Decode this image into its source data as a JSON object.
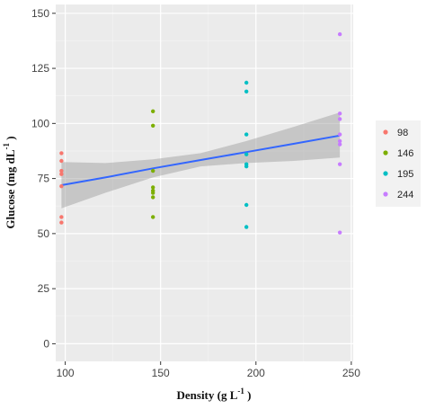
{
  "chart_data": {
    "type": "scatter",
    "title": "",
    "xlabel": {
      "main": "Density (g L",
      "sup": "-1",
      "tail": " )"
    },
    "ylabel": {
      "main": "Glucose (mg dL",
      "sup": "-1",
      "tail": " )"
    },
    "xlim": [
      95,
      251
    ],
    "ylim": [
      -8,
      154
    ],
    "x_ticks": [
      100,
      150,
      200,
      250
    ],
    "y_ticks": [
      0,
      25,
      50,
      75,
      100,
      125,
      150
    ],
    "grid": true,
    "legend_position": "right",
    "series": [
      {
        "name": "98",
        "color": "#F8766D",
        "x": 98,
        "values": [
          86.5,
          83,
          78.5,
          77,
          71.5,
          57.5,
          55
        ]
      },
      {
        "name": "146",
        "color": "#7CAE00",
        "x": 146,
        "values": [
          105.5,
          99,
          78.5,
          71,
          69.5,
          68.5,
          66.5,
          57.5
        ]
      },
      {
        "name": "195",
        "color": "#00BFC4",
        "x": 195,
        "values": [
          118.5,
          114.5,
          95,
          86,
          81.5,
          80.5,
          63,
          53
        ]
      },
      {
        "name": "244",
        "color": "#C77CFF",
        "x": 244,
        "values": [
          140.5,
          104.5,
          102,
          95,
          92,
          90.5,
          81.5,
          50.5
        ]
      }
    ],
    "trend_line": {
      "color": "#3366FF",
      "x": [
        98,
        121,
        146,
        171,
        195,
        220,
        244
      ],
      "fit": [
        72,
        75.5,
        79.6,
        83.4,
        87,
        90.8,
        94.5
      ],
      "ci_lower": [
        61.5,
        68.5,
        75.5,
        80.5,
        82,
        83,
        84.5
      ],
      "ci_upper": [
        82.5,
        82,
        83.7,
        86.5,
        92,
        98.5,
        105
      ]
    }
  }
}
